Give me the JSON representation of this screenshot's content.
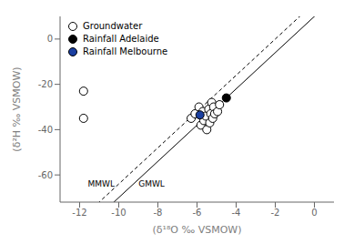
{
  "chart_data": {
    "type": "scatter",
    "xlabel": "(δ¹⁸O ‰ VSMOW)",
    "ylabel": "(δ²H ‰ VSMOW)",
    "xlim": [
      -13,
      1
    ],
    "ylim": [
      -72,
      10
    ],
    "xticks": [
      -12,
      -10,
      -8,
      -6,
      -4,
      -2,
      0
    ],
    "yticks": [
      -60,
      -40,
      -20,
      0
    ],
    "grid": false,
    "legend": "upper left",
    "series": [
      {
        "name": "Groundwater",
        "color": "#000000",
        "marker": "open_circle",
        "x": [
          -11.8,
          -11.8,
          -6.3,
          -6.1,
          -5.9,
          -5.8,
          -5.7,
          -5.65,
          -5.55,
          -5.5,
          -5.4,
          -5.35,
          -5.3,
          -5.25,
          -5.2,
          -5.15,
          -5.1,
          -4.95,
          -4.85
        ],
        "y": [
          -23.0,
          -35.0,
          -35.0,
          -33.0,
          -30.0,
          -38.0,
          -32.0,
          -36.0,
          -34.0,
          -40.0,
          -31.0,
          -37.0,
          -33.0,
          -28.0,
          -35.0,
          -30.0,
          -33.0,
          -32.0,
          -29.0
        ]
      },
      {
        "name": "Rainfall Adelaide",
        "color": "#000000",
        "marker": "circle",
        "x": [
          -4.5
        ],
        "y": [
          -26.0
        ]
      },
      {
        "name": "Rainfall Melbourne",
        "color": "#1a3fa0",
        "marker": "circle",
        "x": [
          -5.85
        ],
        "y": [
          -33.5
        ]
      }
    ],
    "lines": [
      {
        "name": "GMWL",
        "slope": 8,
        "intercept": 10,
        "color": "#000000",
        "line_style": "solid"
      },
      {
        "name": "MMWL",
        "slope": 8,
        "intercept": 16,
        "color": "#000000",
        "line_style": "dashed"
      }
    ]
  }
}
